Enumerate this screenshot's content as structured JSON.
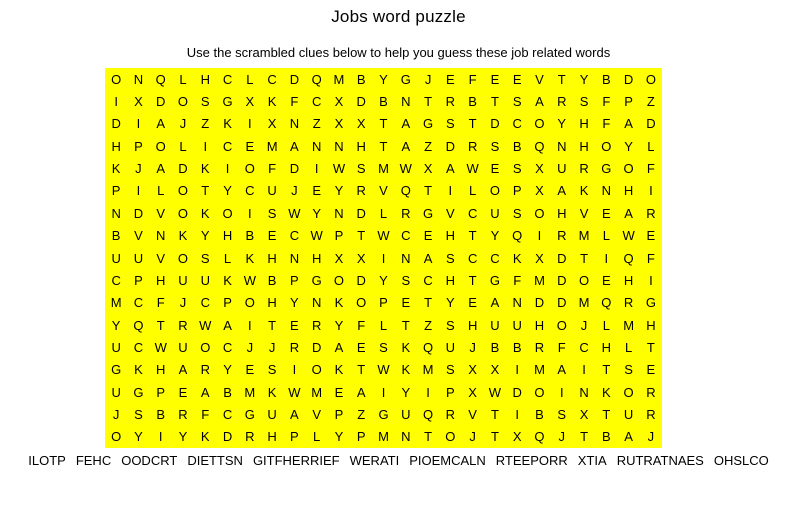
{
  "title": "Jobs word puzzle",
  "subtitle": "Use the scrambled clues below to help you guess these job related words",
  "grid": {
    "background_color": "#FFFF00",
    "letter_color": "#000000",
    "columns": 25,
    "row_count": 17,
    "rows": [
      "ONQLHCLCDQMBYGJEFEEVTYBDO",
      "IXDOSGXKFCXDBNTRBTSARSFPZ",
      "DIAJZKIXNZXXTAGSTDCOYHFAD",
      "HPOLICEMANNHTAZDRSBQNHOYL",
      "KJADKIOFDIWSMWXAWESXURGOF",
      "PILOTYCUJEYRVQTILOPXAKNHI",
      "NDVOKOISWYNDLRGVCUSOHVEAR",
      "BVNKYHBECWPTWCEHTYQIRMLWE",
      "UUVOSLKHNHXXINASCCKXDTIQF",
      "CPHUUKWBPGODYSCHTGFMDOEHI",
      "MCFJCPOHYNKOPETYEANDDMQRG",
      "YQTRWAITERYFLTZSHUUHOJLMH",
      "UCWUOCJJRDAESKQUJBBRFCHLT",
      "GKHARYESIOKTWKMSXXIMAITSE",
      "UGPEABMKWMEAIYIPXWDOINKOR",
      "JSBRFCGUAVPZGUQRVTIBSXTUR",
      "OYIYKDRHPLYPMNTOJTXQJTBAJ"
    ]
  },
  "clues": [
    "ILOTP",
    "FEHC",
    "OODCRT",
    "DIETTSN",
    "GITFHERRIEF",
    "WERATI",
    "PIOEMCALN",
    "RTEEPORR",
    "XTIA",
    "RUTRATNAES",
    "OHSLCO"
  ]
}
